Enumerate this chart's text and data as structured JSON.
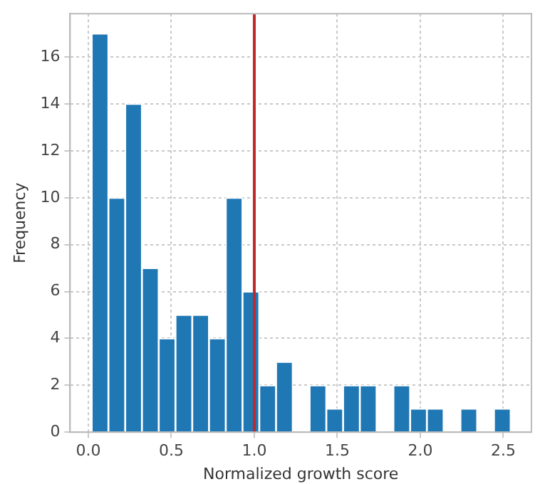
{
  "chart_data": {
    "type": "histogram",
    "xlabel": "Normalized growth score",
    "ylabel": "Frequency",
    "bins": [
      0.02,
      0.121,
      0.222,
      0.323,
      0.424,
      0.525,
      0.626,
      0.727,
      0.828,
      0.929,
      1.03,
      1.131,
      1.232,
      1.333,
      1.434,
      1.535,
      1.636,
      1.737,
      1.838,
      1.939,
      2.04,
      2.141,
      2.242,
      2.343,
      2.444,
      2.545
    ],
    "values": [
      17,
      10,
      14,
      7,
      4,
      5,
      5,
      4,
      10,
      6,
      2,
      3,
      0,
      2,
      1,
      2,
      2,
      0,
      2,
      1,
      1,
      0,
      1,
      0,
      1
    ],
    "color": "#1f77b4",
    "xlim": [
      -0.11,
      2.67
    ],
    "ylim": [
      0,
      17.85
    ],
    "xticks": [
      {
        "value": 0,
        "label": "0.0"
      },
      {
        "value": 0.5,
        "label": "0.5"
      },
      {
        "value": 1,
        "label": "1.0"
      },
      {
        "value": 1.5,
        "label": "1.5"
      },
      {
        "value": 2,
        "label": "2.0"
      },
      {
        "value": 2.5,
        "label": "2.5"
      }
    ],
    "yticks": [
      0,
      2,
      4,
      6,
      8,
      10,
      12,
      14,
      16
    ],
    "ref_lines": [
      {
        "axis": "x",
        "value": 1,
        "color": "#c0292b"
      }
    ],
    "grid": true
  }
}
